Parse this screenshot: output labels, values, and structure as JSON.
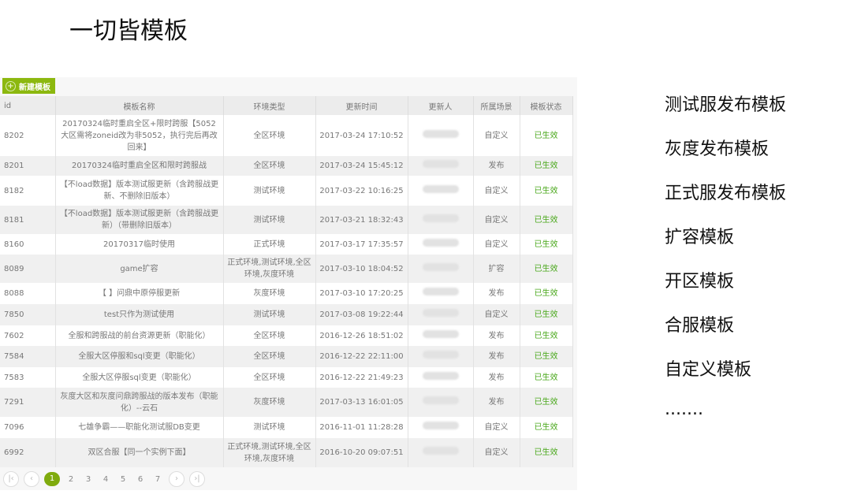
{
  "title": "一切皆模板",
  "new_button": "新建模板",
  "columns": [
    "id",
    "模板名称",
    "环境类型",
    "更新时间",
    "更新人",
    "所属场景",
    "模板状态"
  ],
  "rows": [
    {
      "id": "8202",
      "name": "20170324临时重启全区+限时跨服【5052大区需将zoneid改为非5052，执行完后再改回来】",
      "env": "全区环境",
      "time": "2017-03-24 17:10:52",
      "scene": "自定义",
      "status": "已生效"
    },
    {
      "id": "8201",
      "name": "20170324临时重启全区和限时跨服战",
      "env": "全区环境",
      "time": "2017-03-24 15:45:12",
      "scene": "发布",
      "status": "已生效"
    },
    {
      "id": "8182",
      "name": "【不load数据】版本测试服更新（含跨服战更新、不删除旧版本）",
      "env": "测试环境",
      "time": "2017-03-22 10:16:25",
      "scene": "自定义",
      "status": "已生效"
    },
    {
      "id": "8181",
      "name": "【不load数据】版本测试服更新（含跨服战更新）（带删除旧版本）",
      "env": "测试环境",
      "time": "2017-03-21 18:32:43",
      "scene": "自定义",
      "status": "已生效"
    },
    {
      "id": "8160",
      "name": "20170317临时使用",
      "env": "正式环境",
      "time": "2017-03-17 17:35:57",
      "scene": "自定义",
      "status": "已生效"
    },
    {
      "id": "8089",
      "name": "game扩容",
      "env": "正式环境,测试环境,全区环境,灰度环境",
      "time": "2017-03-10 18:04:52",
      "scene": "扩容",
      "status": "已生效"
    },
    {
      "id": "8088",
      "name": "【      】问鼎中原停服更新",
      "env": "灰度环境",
      "time": "2017-03-10 17:20:25",
      "scene": "发布",
      "status": "已生效"
    },
    {
      "id": "7850",
      "name": "test只作为测试使用",
      "env": "测试环境",
      "time": "2017-03-08 19:22:44",
      "scene": "自定义",
      "status": "已生效"
    },
    {
      "id": "7602",
      "name": "全服和跨服战的前台资源更新（职能化）",
      "env": "全区环境",
      "time": "2016-12-26 18:51:02",
      "scene": "发布",
      "status": "已生效"
    },
    {
      "id": "7584",
      "name": "全服大区停服和sql变更（职能化）",
      "env": "全区环境",
      "time": "2016-12-22 22:11:00",
      "scene": "发布",
      "status": "已生效"
    },
    {
      "id": "7583",
      "name": "全服大区停服sql变更（职能化）",
      "env": "全区环境",
      "time": "2016-12-22 21:49:23",
      "scene": "发布",
      "status": "已生效"
    },
    {
      "id": "7291",
      "name": "灰度大区和灰度问鼎跨服战的版本发布（职能化）--云石",
      "env": "灰度环境",
      "time": "2017-03-13 16:01:05",
      "scene": "发布",
      "status": "已生效"
    },
    {
      "id": "7096",
      "name": "七雄争霸——职能化测试服DB变更",
      "env": "测试环境",
      "time": "2016-11-01 11:28:28",
      "scene": "自定义",
      "status": "已生效"
    },
    {
      "id": "6992",
      "name": "双区合服【同一个实例下面】",
      "env": "正式环境,测试环境,全区环境,灰度环境",
      "time": "2016-10-20 09:07:51",
      "scene": "自定义",
      "status": "已生效"
    }
  ],
  "pagination": {
    "current": "1",
    "pages": [
      "2",
      "3",
      "4",
      "5",
      "6",
      "7"
    ]
  },
  "side_list": [
    "测试服发布模板",
    "灰度发布模板",
    "正式服发布模板",
    "扩容模板",
    "开区模板",
    "合服模板",
    "自定义模板",
    "......."
  ],
  "colors": {
    "accent": "#8cb80f",
    "status_ok": "#4aa81c"
  }
}
